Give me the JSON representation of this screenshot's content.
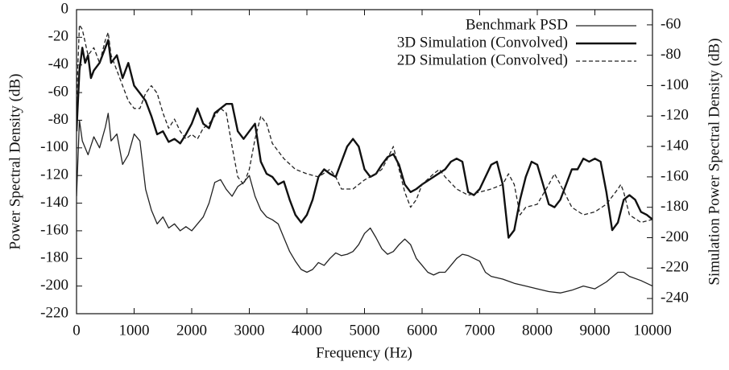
{
  "chart_data": {
    "type": "line",
    "xlabel": "Frequency (Hz)",
    "ylabel": "Power Spectral Density (dB)",
    "y2label": "Simulation Power Spectral Density (dB)",
    "xlim": [
      0,
      10000
    ],
    "xticks": [
      0,
      1000,
      2000,
      3000,
      4000,
      5000,
      6000,
      7000,
      8000,
      9000,
      10000
    ],
    "ylim": [
      -220,
      0
    ],
    "yticks": [
      0,
      -20,
      -40,
      -60,
      -80,
      -100,
      -120,
      -140,
      -160,
      -180,
      -200,
      -220
    ],
    "y2lim": [
      -250,
      -50
    ],
    "y2ticks": [
      -60,
      -80,
      -100,
      -120,
      -140,
      -160,
      -180,
      -200,
      -220,
      -240
    ],
    "legend": "upper right",
    "series": [
      {
        "name": "Benchmark PSD",
        "color": "#222222",
        "linestyle": "solid",
        "linewidth": 1.3,
        "x": [
          0,
          50,
          100,
          200,
          300,
          400,
          500,
          550,
          600,
          700,
          800,
          900,
          1000,
          1100,
          1200,
          1300,
          1400,
          1500,
          1600,
          1700,
          1800,
          1900,
          2000,
          2100,
          2200,
          2300,
          2400,
          2500,
          2600,
          2700,
          2800,
          2900,
          3000,
          3100,
          3200,
          3300,
          3400,
          3500,
          3600,
          3700,
          3800,
          3900,
          4000,
          4100,
          4200,
          4300,
          4400,
          4500,
          4600,
          4700,
          4800,
          4900,
          5000,
          5100,
          5200,
          5300,
          5400,
          5500,
          5600,
          5700,
          5800,
          5900,
          6000,
          6100,
          6200,
          6300,
          6400,
          6500,
          6600,
          6700,
          6800,
          6900,
          7000,
          7100,
          7200,
          7400,
          7600,
          7800,
          8000,
          8200,
          8400,
          8600,
          8800,
          9000,
          9200,
          9400,
          9500,
          9600,
          9800,
          10000
        ],
        "values": [
          -135,
          -80,
          -95,
          -105,
          -92,
          -100,
          -85,
          -75,
          -95,
          -90,
          -112,
          -105,
          -90,
          -95,
          -130,
          -145,
          -155,
          -150,
          -158,
          -155,
          -160,
          -157,
          -160,
          -155,
          -150,
          -140,
          -125,
          -123,
          -130,
          -135,
          -128,
          -125,
          -120,
          -135,
          -145,
          -150,
          -152,
          -155,
          -165,
          -175,
          -182,
          -188,
          -190,
          -188,
          -183,
          -185,
          -180,
          -176,
          -178,
          -177,
          -175,
          -170,
          -162,
          -158,
          -165,
          -173,
          -177,
          -175,
          -170,
          -166,
          -170,
          -180,
          -185,
          -190,
          -192,
          -190,
          -190,
          -185,
          -180,
          -177,
          -178,
          -180,
          -182,
          -190,
          -193,
          -195,
          -198,
          -200,
          -202,
          -204,
          -205,
          -203,
          -200,
          -202,
          -197,
          -190,
          -190,
          -193,
          -196,
          -200
        ]
      },
      {
        "name": "3D Simulation (Convolved)",
        "color": "#111111",
        "linestyle": "solid",
        "linewidth": 2.4,
        "axis": "y2",
        "x": [
          0,
          50,
          100,
          150,
          200,
          250,
          300,
          400,
          500,
          550,
          600,
          700,
          800,
          900,
          1000,
          1100,
          1200,
          1300,
          1400,
          1500,
          1600,
          1700,
          1800,
          1900,
          2000,
          2100,
          2200,
          2300,
          2400,
          2500,
          2600,
          2700,
          2800,
          2900,
          3000,
          3100,
          3200,
          3300,
          3400,
          3500,
          3600,
          3700,
          3800,
          3900,
          4000,
          4100,
          4200,
          4300,
          4400,
          4500,
          4600,
          4700,
          4800,
          4900,
          5000,
          5100,
          5200,
          5300,
          5400,
          5500,
          5600,
          5700,
          5800,
          5900,
          6000,
          6200,
          6400,
          6500,
          6600,
          6700,
          6800,
          6900,
          7000,
          7200,
          7300,
          7400,
          7500,
          7600,
          7700,
          7800,
          7900,
          8000,
          8100,
          8200,
          8300,
          8400,
          8500,
          8600,
          8700,
          8800,
          8900,
          9000,
          9100,
          9200,
          9300,
          9400,
          9500,
          9600,
          9700,
          9800,
          9900,
          10000
        ],
        "values": [
          -130,
          -90,
          -75,
          -85,
          -80,
          -95,
          -90,
          -85,
          -75,
          -70,
          -85,
          -80,
          -95,
          -85,
          -100,
          -105,
          -110,
          -120,
          -132,
          -130,
          -137,
          -135,
          -138,
          -132,
          -125,
          -115,
          -125,
          -128,
          -118,
          -115,
          -112,
          -112,
          -130,
          -135,
          -130,
          -125,
          -150,
          -158,
          -160,
          -165,
          -163,
          -175,
          -185,
          -190,
          -185,
          -175,
          -160,
          -155,
          -158,
          -160,
          -150,
          -140,
          -135,
          -140,
          -155,
          -160,
          -158,
          -152,
          -147,
          -145,
          -152,
          -165,
          -170,
          -168,
          -165,
          -160,
          -155,
          -150,
          -148,
          -150,
          -170,
          -172,
          -168,
          -152,
          -150,
          -165,
          -200,
          -195,
          -175,
          -160,
          -150,
          -152,
          -165,
          -178,
          -180,
          -175,
          -165,
          -155,
          -155,
          -148,
          -150,
          -148,
          -150,
          -170,
          -195,
          -190,
          -175,
          -172,
          -175,
          -183,
          -185,
          -188
        ]
      },
      {
        "name": "2D Simulation (Convolved)",
        "color": "#222222",
        "linestyle": "dashed",
        "linewidth": 1.3,
        "axis": "y2",
        "x": [
          0,
          50,
          100,
          200,
          300,
          400,
          500,
          550,
          600,
          700,
          800,
          900,
          1000,
          1100,
          1200,
          1300,
          1400,
          1500,
          1600,
          1700,
          1800,
          1900,
          2000,
          2100,
          2200,
          2300,
          2400,
          2500,
          2600,
          2700,
          2800,
          2900,
          3000,
          3100,
          3200,
          3300,
          3400,
          3600,
          3800,
          4000,
          4200,
          4400,
          4500,
          4600,
          4800,
          5000,
          5200,
          5300,
          5400,
          5500,
          5600,
          5700,
          5800,
          5900,
          6000,
          6200,
          6300,
          6400,
          6600,
          6800,
          7000,
          7200,
          7400,
          7500,
          7600,
          7700,
          7800,
          8000,
          8200,
          8300,
          8400,
          8600,
          8800,
          9000,
          9200,
          9400,
          9450,
          9500,
          9600,
          9800,
          10000
        ],
        "values": [
          -110,
          -60,
          -63,
          -80,
          -75,
          -85,
          -70,
          -65,
          -80,
          -90,
          -100,
          -110,
          -115,
          -115,
          -105,
          -100,
          -105,
          -118,
          -128,
          -122,
          -130,
          -135,
          -132,
          -135,
          -128,
          -125,
          -120,
          -115,
          -118,
          -140,
          -160,
          -165,
          -155,
          -135,
          -120,
          -125,
          -138,
          -148,
          -155,
          -158,
          -160,
          -155,
          -160,
          -168,
          -168,
          -162,
          -158,
          -155,
          -148,
          -140,
          -155,
          -170,
          -180,
          -175,
          -165,
          -158,
          -155,
          -160,
          -168,
          -172,
          -170,
          -168,
          -165,
          -158,
          -165,
          -185,
          -180,
          -178,
          -165,
          -158,
          -165,
          -180,
          -185,
          -183,
          -178,
          -168,
          -165,
          -170,
          -185,
          -190,
          -188
        ]
      }
    ]
  }
}
